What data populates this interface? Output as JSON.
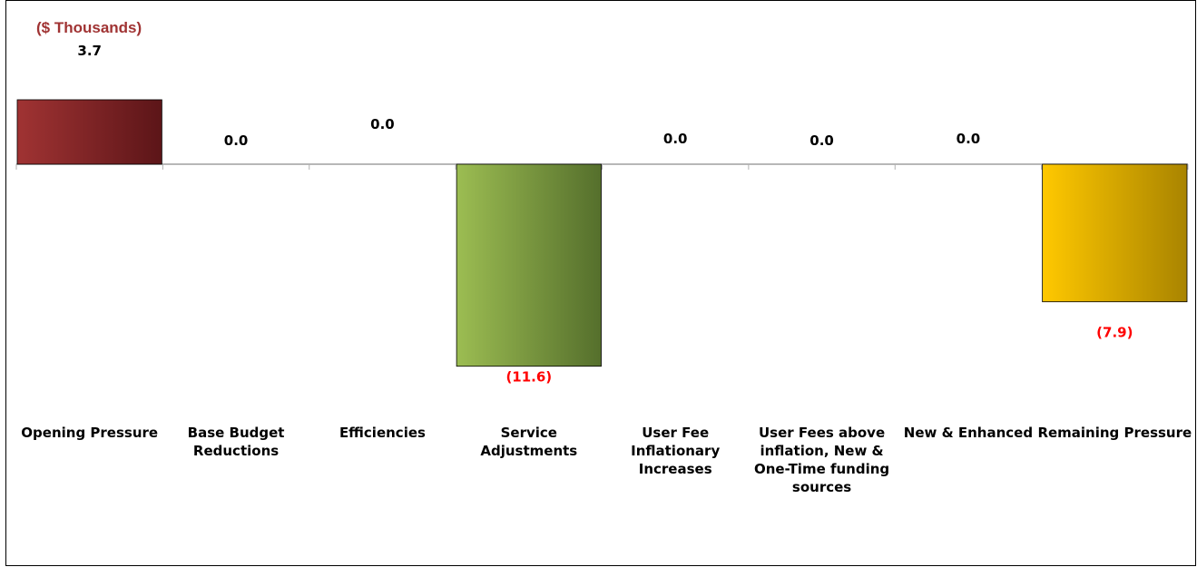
{
  "chart_data": {
    "type": "bar",
    "unit_label": "($ Thousands)",
    "categories": [
      "Opening Pressure",
      "Base Budget Reductions",
      "Efficiencies",
      "Service Adjustments",
      "User Fee Inflationary Increases",
      "User Fees above inflation, New & One-Time funding sources",
      "New & Enhanced",
      "Remaining Pressure"
    ],
    "values": [
      3.7,
      0.0,
      0.0,
      -11.6,
      0.0,
      0.0,
      0.0,
      -7.9
    ],
    "value_labels": [
      "3.7",
      "0.0",
      "0.0",
      "(11.6)",
      "0.0",
      "0.0",
      "0.0",
      "(7.9)"
    ],
    "grid": false,
    "legend": "none",
    "colors": {
      "opening": [
        "#a03333",
        "#5c1518"
      ],
      "service": [
        "#9cbd52",
        "#556f2c"
      ],
      "remaining": [
        "#ffc800",
        "#a98400"
      ],
      "negative_label": "#ff0000",
      "positive_label": "#000000",
      "unit_label": "#a03333"
    }
  }
}
